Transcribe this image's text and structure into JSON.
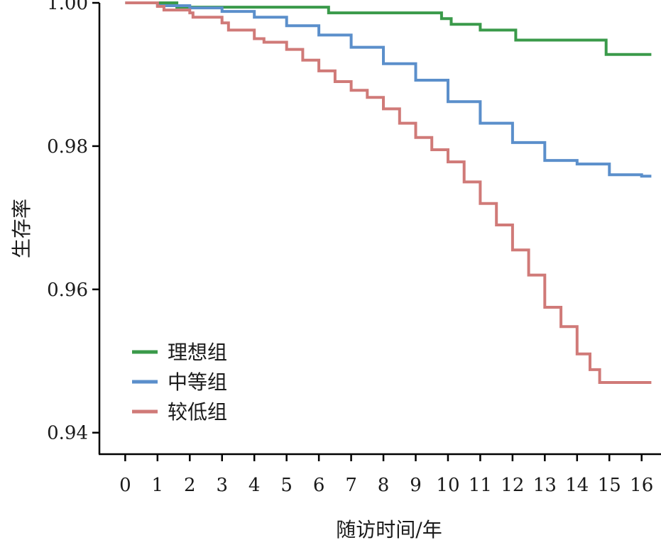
{
  "chart_data": {
    "type": "line",
    "step": true,
    "title": "",
    "xlabel": "随访时间/年",
    "ylabel": "生存率",
    "xlim": [
      -0.8,
      16.6
    ],
    "ylim": [
      0.937,
      1.0
    ],
    "xticks": [
      0,
      1,
      2,
      3,
      4,
      5,
      6,
      7,
      8,
      9,
      10,
      11,
      12,
      13,
      14,
      15,
      16
    ],
    "xtick_labels": [
      "0",
      "1",
      "2",
      "3",
      "4",
      "5",
      "6",
      "7",
      "8",
      "9",
      "10",
      "11",
      "12",
      "13",
      "14",
      "15",
      "16"
    ],
    "yticks": [
      0.94,
      0.96,
      0.98,
      1.0
    ],
    "ytick_labels": [
      "0.94",
      "0.96",
      "0.98",
      "1.00"
    ],
    "grid": false,
    "legend_position": "bottom-left",
    "series": [
      {
        "name": "理想组",
        "color": "#3a9a4a",
        "x": [
          0,
          1.6,
          1.6,
          6.3,
          6.3,
          9.8,
          9.8,
          10.1,
          10.1,
          11.0,
          11.0,
          12.1,
          12.1,
          14.9,
          14.9,
          16.3
        ],
        "y": [
          1.0,
          1.0,
          0.9994,
          0.9994,
          0.9986,
          0.9986,
          0.9978,
          0.9978,
          0.997,
          0.997,
          0.9962,
          0.9962,
          0.9948,
          0.9948,
          0.9928,
          0.9928
        ]
      },
      {
        "name": "中等组",
        "color": "#5b8fcb",
        "x": [
          0,
          1,
          2,
          3,
          4,
          5,
          6,
          7,
          8,
          9,
          10,
          11,
          12,
          13,
          14,
          15,
          16,
          16.3
        ],
        "y": [
          1.0,
          0.9996,
          0.9993,
          0.9988,
          0.998,
          0.9968,
          0.9955,
          0.9938,
          0.9915,
          0.9892,
          0.9862,
          0.9832,
          0.9805,
          0.978,
          0.9775,
          0.976,
          0.9758,
          0.9758
        ]
      },
      {
        "name": "较低组",
        "color": "#d07a78",
        "x": [
          0,
          1,
          1.2,
          2,
          2.1,
          3,
          3.2,
          4,
          4.3,
          5,
          5.5,
          6,
          6.5,
          7,
          7.5,
          8,
          8.5,
          9,
          9.5,
          10,
          10.5,
          11,
          11.5,
          12,
          12.5,
          13,
          13.5,
          14,
          14.4,
          14.7,
          16.3
        ],
        "y": [
          1.0,
          0.9995,
          0.999,
          0.9986,
          0.998,
          0.9972,
          0.9962,
          0.995,
          0.9945,
          0.9935,
          0.992,
          0.9905,
          0.989,
          0.9878,
          0.9868,
          0.9852,
          0.9832,
          0.9812,
          0.9795,
          0.9778,
          0.975,
          0.972,
          0.969,
          0.9655,
          0.962,
          0.9575,
          0.9548,
          0.951,
          0.9488,
          0.947,
          0.947
        ]
      }
    ]
  }
}
